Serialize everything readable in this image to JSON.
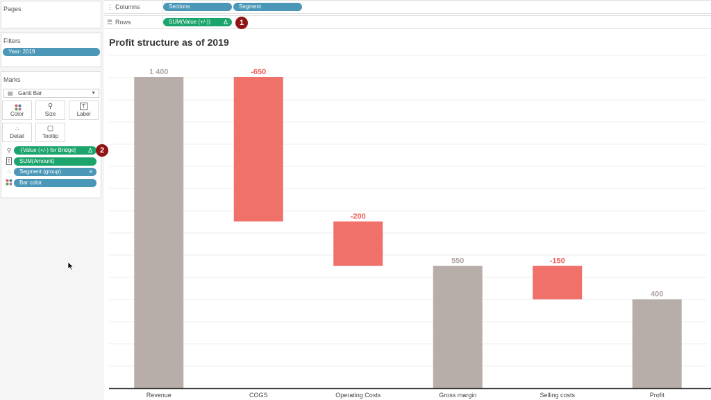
{
  "left_panel": {
    "pages": {
      "title": "Pages"
    },
    "filters": {
      "title": "Filters",
      "pills": [
        "Year: 2019"
      ]
    },
    "marks": {
      "title": "Marks",
      "mark_type": "Gantt Bar",
      "buttons": [
        {
          "label": "Color",
          "icon": "color-dots-icon"
        },
        {
          "label": "Size",
          "icon": "size-icon"
        },
        {
          "label": "Label",
          "icon": "label-icon"
        },
        {
          "label": "Detail",
          "icon": "detail-icon"
        },
        {
          "label": "Tooltip",
          "icon": "tooltip-icon"
        }
      ],
      "shelf_items": [
        {
          "label": "-[Value (+/-) for Bridge]",
          "icon": "size-icon",
          "color": "green",
          "delta": "Δ",
          "badge": "2"
        },
        {
          "label": "SUM(Amount)",
          "icon": "label-icon",
          "color": "green"
        },
        {
          "label": "Segment (group)",
          "icon": "detail-icon",
          "color": "blue",
          "sort": "sort-icon"
        },
        {
          "label": "Bar color",
          "icon": "color-dots-icon",
          "color": "blue"
        }
      ]
    }
  },
  "shelves": {
    "columns": {
      "label": "Columns",
      "pills": [
        "Sections",
        "Segment"
      ]
    },
    "rows": {
      "label": "Rows",
      "pills": [
        "SUM(Value (+/-))"
      ],
      "delta": "Δ",
      "badge": "1"
    }
  },
  "colors": {
    "total_bar": "#b8aea9",
    "negative_bar": "#f0706a",
    "total_label": "#b1a6a1",
    "negative_label": "#ef5b56",
    "pill_blue": "#4b97b7",
    "pill_green": "#1ba46c",
    "badge": "#8f1414"
  },
  "chart_data": {
    "type": "bar",
    "subtype": "waterfall",
    "title": "Profit structure as of 2019",
    "categories": [
      "Revenue",
      "COGS",
      "Operating Costs",
      "Gross margin",
      "Selling costs",
      "Profit"
    ],
    "bars": [
      {
        "category": "Revenue",
        "start": 0,
        "end": 1400,
        "label": "1 400",
        "kind": "total"
      },
      {
        "category": "COGS",
        "start": 750,
        "end": 1400,
        "label": "-650",
        "kind": "negative"
      },
      {
        "category": "Operating Costs",
        "start": 550,
        "end": 750,
        "label": "-200",
        "kind": "negative"
      },
      {
        "category": "Gross margin",
        "start": 0,
        "end": 550,
        "label": "550",
        "kind": "total"
      },
      {
        "category": "Selling costs",
        "start": 400,
        "end": 550,
        "label": "-150",
        "kind": "negative"
      },
      {
        "category": "Profit",
        "start": 0,
        "end": 400,
        "label": "400",
        "kind": "total"
      }
    ],
    "ylim": [
      0,
      1500
    ],
    "gridlines": "horizontal",
    "xlabel": "",
    "ylabel": ""
  }
}
